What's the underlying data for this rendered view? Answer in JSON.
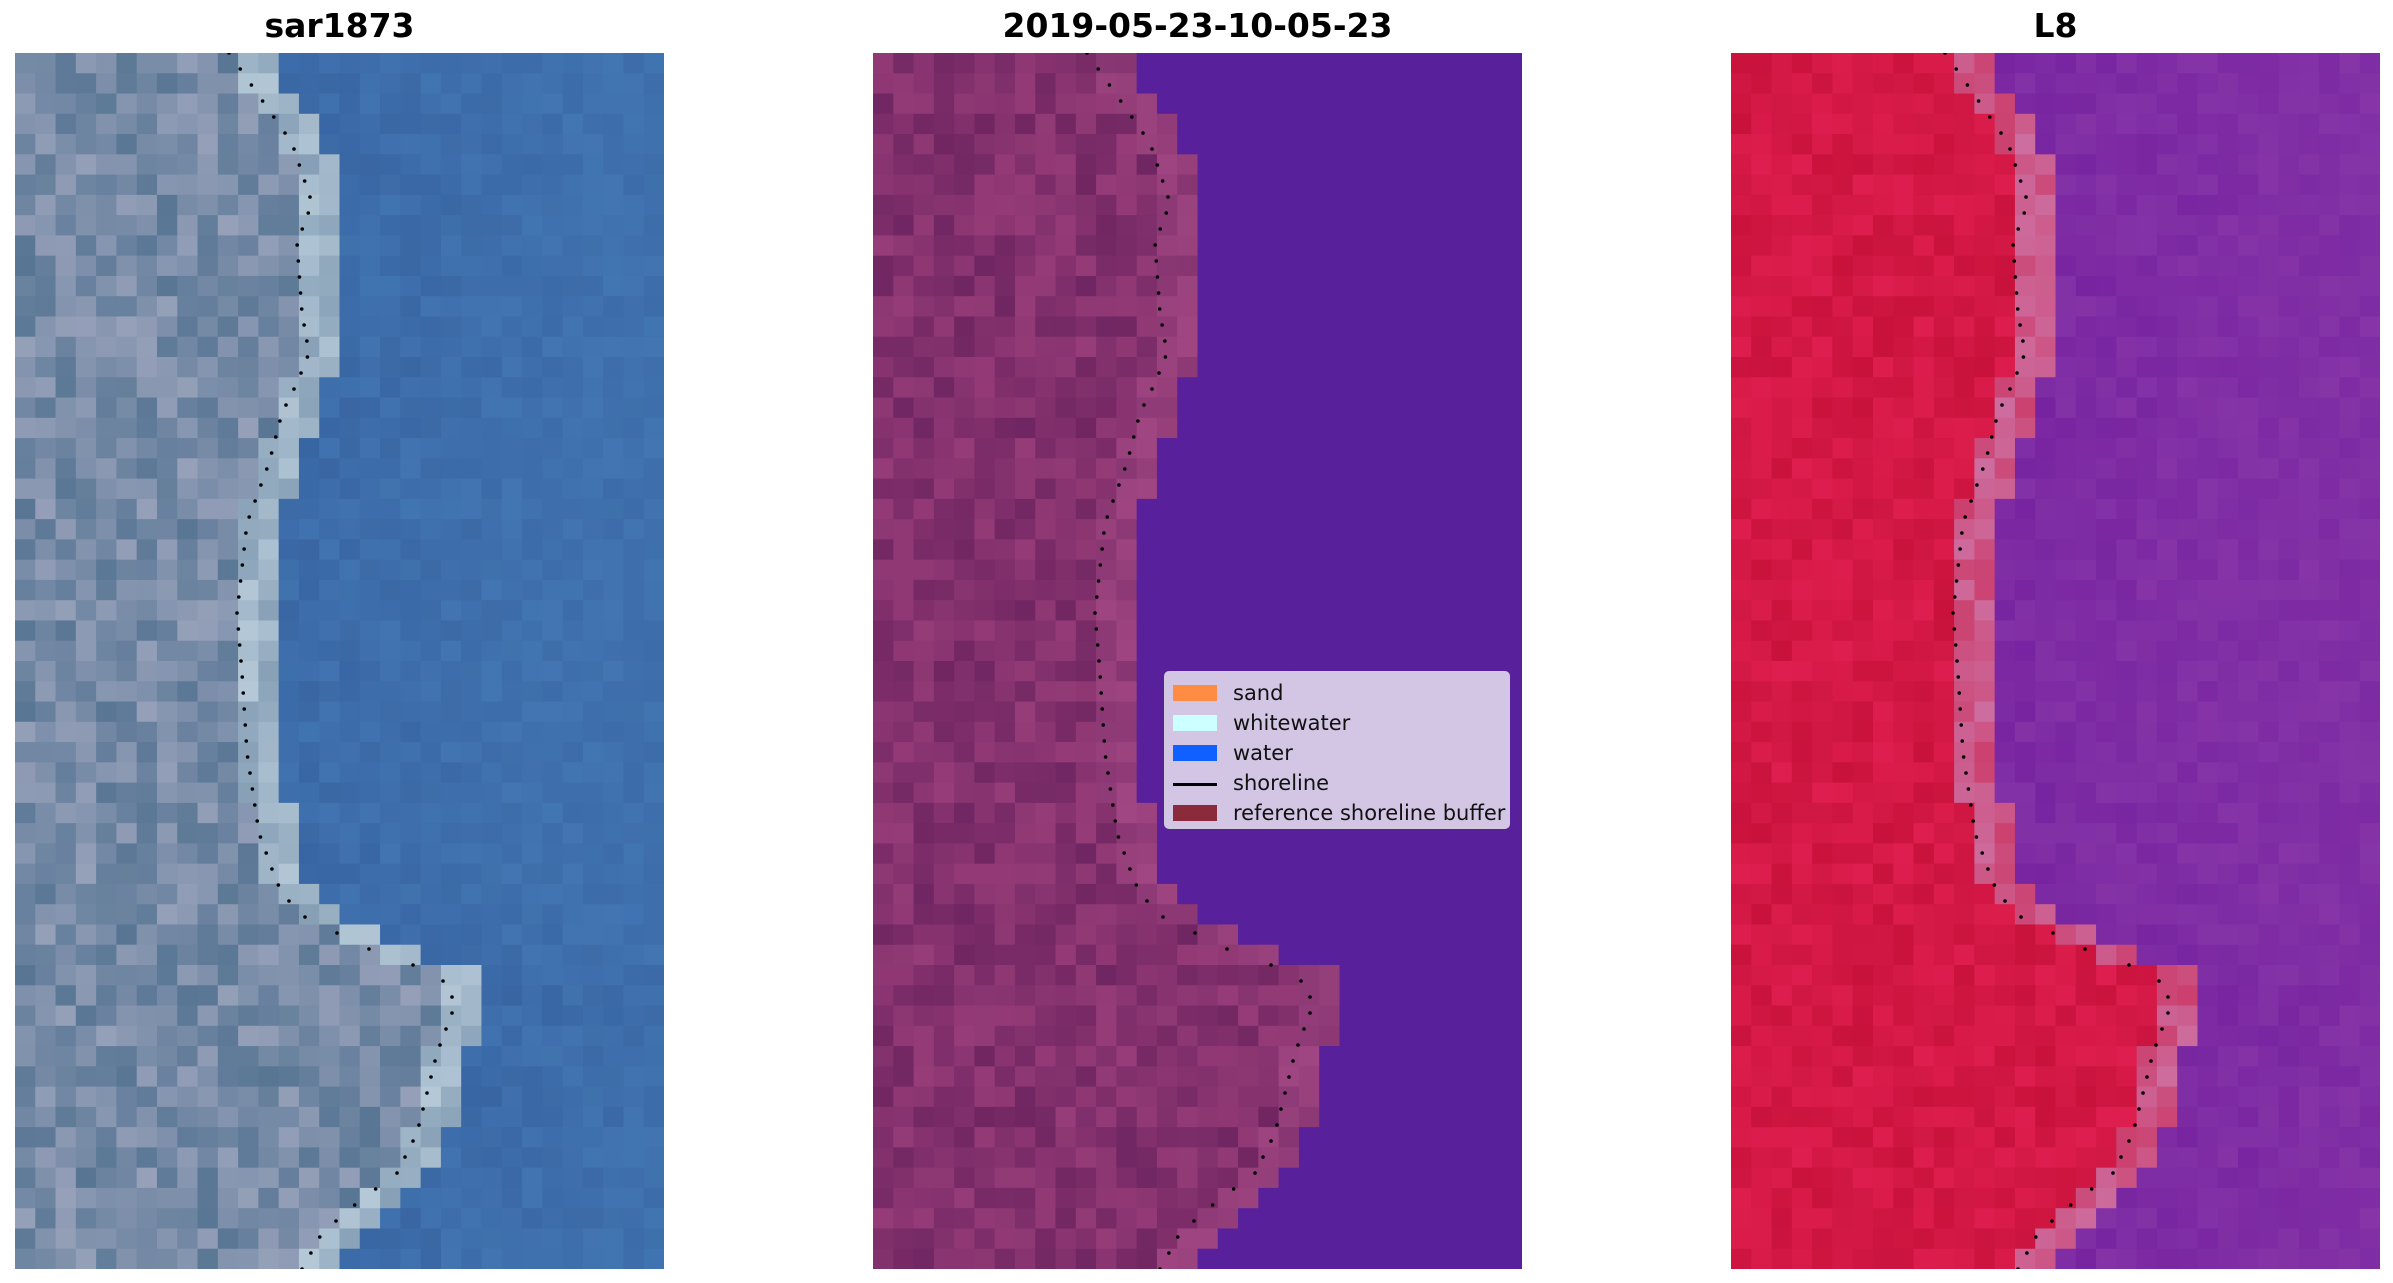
{
  "panels": [
    {
      "title": "sar1873"
    },
    {
      "title": "2019-05-23-10-05-23"
    },
    {
      "title": "L8"
    }
  ],
  "legend": {
    "items": [
      {
        "label": "sand",
        "type": "patch",
        "color": "#ff8c42"
      },
      {
        "label": "whitewater",
        "type": "patch",
        "color": "#ccffff"
      },
      {
        "label": "water",
        "type": "patch",
        "color": "#1060ff"
      },
      {
        "label": "shoreline",
        "type": "line",
        "color": "#000000"
      },
      {
        "label": "reference shoreline buffer",
        "type": "patch",
        "color": "#8b2a3a"
      }
    ]
  },
  "colors": {
    "rgb_land": "#5a7a94",
    "rgb_water": "#3a6aa6",
    "class_land": "#722a64",
    "class_water": "#5a219b",
    "false_color_land": "#c8103c",
    "false_color_water": "#7a22a0"
  }
}
